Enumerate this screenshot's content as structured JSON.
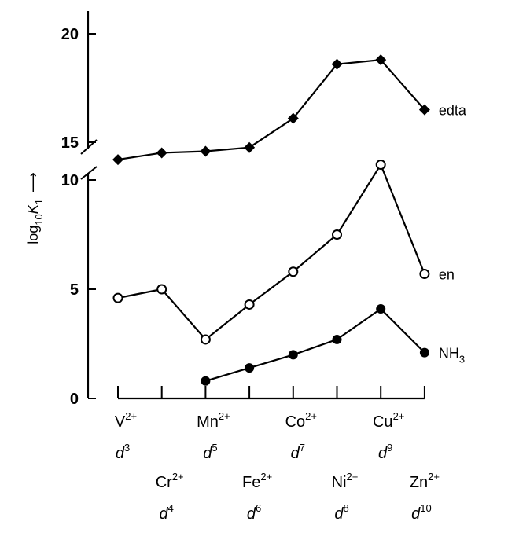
{
  "chart_data": {
    "type": "line",
    "ylabel_main": "log",
    "ylabel_sub": "10",
    "ylabel_var": "K",
    "ylabel_var_sub": "1",
    "ylabel_arrow": "⟶",
    "y_ticks_lower": [
      0,
      5,
      10
    ],
    "y_ticks_upper": [
      15,
      20
    ],
    "ylim_lower": [
      0,
      10
    ],
    "ylim_upper": [
      15,
      20
    ],
    "axis_break": "//",
    "categories": [
      {
        "ion": "V",
        "charge": "2+",
        "config": "d",
        "electrons": "3"
      },
      {
        "ion": "Cr",
        "charge": "2+",
        "config": "d",
        "electrons": "4"
      },
      {
        "ion": "Mn",
        "charge": "2+",
        "config": "d",
        "electrons": "5"
      },
      {
        "ion": "Fe",
        "charge": "2+",
        "config": "d",
        "electrons": "6"
      },
      {
        "ion": "Co",
        "charge": "2+",
        "config": "d",
        "electrons": "7"
      },
      {
        "ion": "Ni",
        "charge": "2+",
        "config": "d",
        "electrons": "8"
      },
      {
        "ion": "Cu",
        "charge": "2+",
        "config": "d",
        "electrons": "9"
      },
      {
        "ion": "Zn",
        "charge": "2+",
        "config": "d",
        "electrons": "10"
      }
    ],
    "series": [
      {
        "name": "edta",
        "name_sub": "",
        "marker": "diamond-filled",
        "values": [
          12.7,
          13.6,
          13.8,
          14.3,
          16.1,
          18.6,
          18.8,
          16.5
        ]
      },
      {
        "name": "en",
        "name_sub": "",
        "marker": "circle-open",
        "values": [
          4.6,
          5.0,
          2.7,
          4.3,
          5.8,
          7.5,
          10.7,
          5.7
        ]
      },
      {
        "name": "NH",
        "name_sub": "3",
        "marker": "circle-filled",
        "values": [
          null,
          null,
          0.8,
          1.4,
          2.0,
          2.7,
          4.1,
          2.1
        ]
      }
    ],
    "grid": false,
    "legend": "inline-right"
  }
}
